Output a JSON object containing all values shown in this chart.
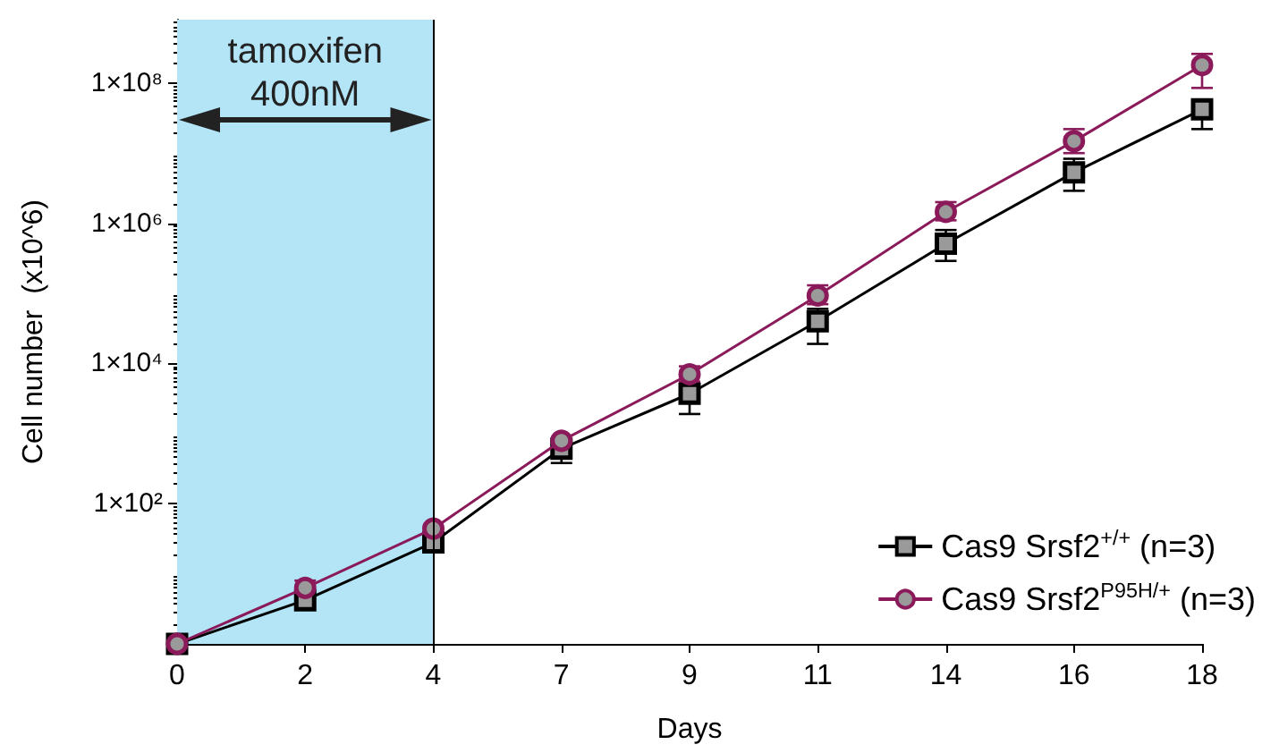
{
  "chart_data": {
    "type": "line",
    "xlabel": "Days",
    "ylabel": "Cell number  (x10^6)",
    "categories": [
      "0",
      "2",
      "4",
      "7",
      "9",
      "11",
      "14",
      "16",
      "18"
    ],
    "log": "y",
    "ylim": [
      1,
      800000000
    ],
    "yticks": [
      {
        "value": 100,
        "label": "1×10²"
      },
      {
        "value": 10000,
        "label": "1×10⁴"
      },
      {
        "value": 1000000,
        "label": "1×10⁶"
      },
      {
        "value": 100000000,
        "label": "1×10⁸"
      }
    ],
    "grid": false,
    "legend": "bottom right",
    "line_style": "solid",
    "ref_lines": [
      {
        "axis": "x",
        "value": "4",
        "color": "#000000",
        "line_style": "solid"
      }
    ],
    "bands": [
      {
        "axis": "x",
        "from": "0",
        "to": "4",
        "label": "tamoxifen\n400nM",
        "color": "#b3e5f7"
      }
    ],
    "series": [
      {
        "name": "Cas9 Srsf2$^{+/+}$ (n=3)",
        "color": "#000000",
        "marker": "square",
        "values": [
          1,
          4.2,
          28,
          610,
          3700,
          40000,
          510000,
          5300000,
          42000000
        ],
        "errors": [
          null,
          null,
          null,
          [
            380,
            700
          ],
          [
            1900,
            5000
          ],
          [
            19000,
            60000
          ],
          [
            290000,
            800000
          ],
          [
            2900000,
            8300000
          ],
          [
            22000000,
            55000000
          ]
        ]
      },
      {
        "name": "Cas9 Srsf2$^{P95H/+}$ (n=3)",
        "color": "#8b1a5a",
        "marker": "circle",
        "values": [
          1,
          6.3,
          44,
          790,
          7000,
          93000,
          1450000,
          14800000,
          180000000
        ],
        "errors": [
          null,
          [
            5,
            8
          ],
          null,
          null,
          [
            5500,
            9100
          ],
          [
            70000,
            130000
          ],
          [
            1100000,
            2000000
          ],
          [
            10000000,
            22000000
          ],
          [
            85000000,
            260000000
          ]
        ]
      }
    ]
  }
}
